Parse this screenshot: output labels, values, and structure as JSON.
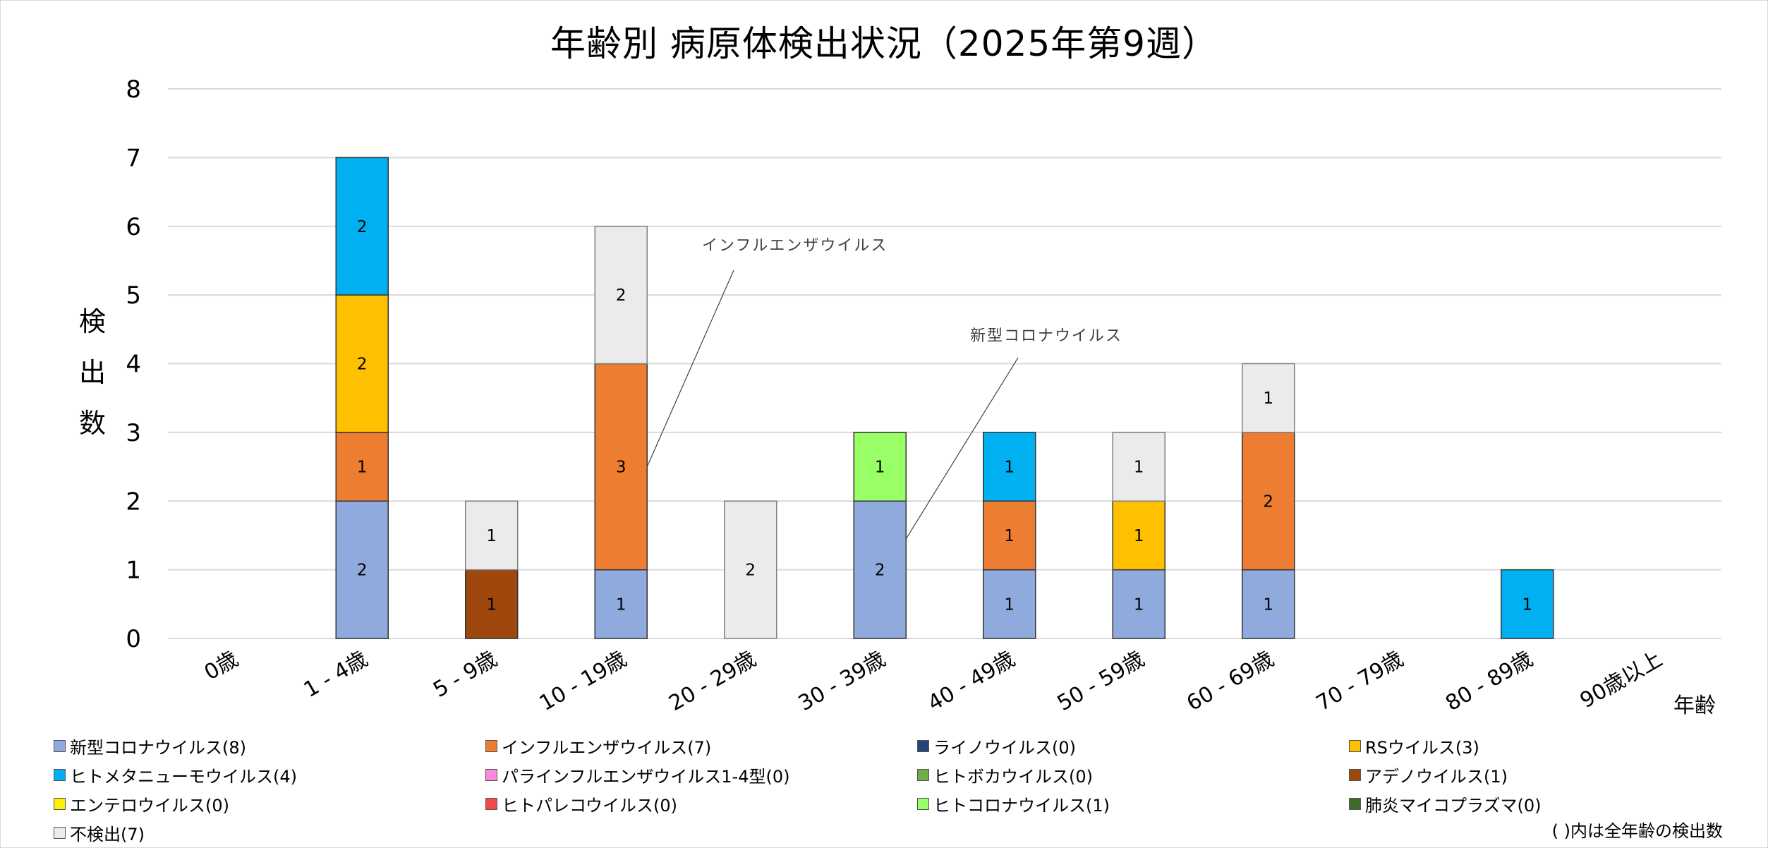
{
  "chart_data": {
    "type": "bar",
    "stacked": true,
    "title": "年齢別 病原体検出状況（2025年第9週）",
    "xlabel": "年齢",
    "ylabel": "検出数",
    "ylim": [
      0,
      8
    ],
    "yticks": [
      "0",
      "1",
      "2",
      "3",
      "4",
      "5",
      "6",
      "7",
      "8"
    ],
    "grid": true,
    "legend_position": "bottom",
    "categories": [
      "0歳",
      "1 - 4歳",
      "5 - 9歳",
      "10 - 19歳",
      "20 - 29歳",
      "30 - 39歳",
      "40 - 49歳",
      "50 - 59歳",
      "60 - 69歳",
      "70 - 79歳",
      "80 - 89歳",
      "90歳以上"
    ],
    "series": [
      {
        "name": "新型コロナウイルス",
        "legend": "新型コロナウイルス(8)",
        "color": "#8faadc",
        "values": [
          0,
          2,
          0,
          1,
          0,
          2,
          1,
          1,
          1,
          0,
          0,
          0
        ]
      },
      {
        "name": "インフルエンザウイルス",
        "legend": "インフルエンザウイルス(7)",
        "color": "#ed7d31",
        "values": [
          0,
          1,
          0,
          3,
          0,
          0,
          1,
          0,
          2,
          0,
          0,
          0
        ]
      },
      {
        "name": "ライノウイルス",
        "legend": "ライノウイルス(0)",
        "color": "#264478",
        "values": [
          0,
          0,
          0,
          0,
          0,
          0,
          0,
          0,
          0,
          0,
          0,
          0
        ]
      },
      {
        "name": "RSウイルス",
        "legend": "RSウイルス(3)",
        "color": "#ffc000",
        "values": [
          0,
          2,
          0,
          0,
          0,
          0,
          0,
          1,
          0,
          0,
          0,
          0
        ]
      },
      {
        "name": "ヒトメタニューモウイルス",
        "legend": "ヒトメタニューモウイルス(4)",
        "color": "#00b0f0",
        "values": [
          0,
          2,
          0,
          0,
          0,
          0,
          1,
          0,
          0,
          0,
          1,
          0
        ]
      },
      {
        "name": "パラインフルエンザウイルス1-4型",
        "legend": "パラインフルエンザウイルス1-4型(0)",
        "color": "#ff88dd",
        "values": [
          0,
          0,
          0,
          0,
          0,
          0,
          0,
          0,
          0,
          0,
          0,
          0
        ]
      },
      {
        "name": "ヒトボカウイルス",
        "legend": "ヒトボカウイルス(0)",
        "color": "#70ad47",
        "values": [
          0,
          0,
          0,
          0,
          0,
          0,
          0,
          0,
          0,
          0,
          0,
          0
        ]
      },
      {
        "name": "アデノウイルス",
        "legend": "アデノウイルス(1)",
        "color": "#9e480e",
        "values": [
          0,
          0,
          1,
          0,
          0,
          0,
          0,
          0,
          0,
          0,
          0,
          0
        ]
      },
      {
        "name": "エンテロウイルス",
        "legend": "エンテロウイルス(0)",
        "color": "#ffef00",
        "values": [
          0,
          0,
          0,
          0,
          0,
          0,
          0,
          0,
          0,
          0,
          0,
          0
        ]
      },
      {
        "name": "ヒトパレコウイルス",
        "legend": "ヒトパレコウイルス(0)",
        "color": "#f24b4b",
        "values": [
          0,
          0,
          0,
          0,
          0,
          0,
          0,
          0,
          0,
          0,
          0,
          0
        ]
      },
      {
        "name": "ヒトコロナウイルス",
        "legend": "ヒトコロナウイルス(1)",
        "color": "#99ff66",
        "values": [
          0,
          0,
          0,
          0,
          0,
          1,
          0,
          0,
          0,
          0,
          0,
          0
        ]
      },
      {
        "name": "肺炎マイコプラズマ",
        "legend": "肺炎マイコプラズマ(0)",
        "color": "#3f6b2a",
        "values": [
          0,
          0,
          0,
          0,
          0,
          0,
          0,
          0,
          0,
          0,
          0,
          0
        ]
      },
      {
        "name": "不検出",
        "legend": "不検出(7)",
        "color": "#ebebeb",
        "values": [
          0,
          0,
          1,
          2,
          2,
          0,
          0,
          1,
          1,
          0,
          0,
          0
        ]
      }
    ],
    "annotations": [
      {
        "text": "インフルエンザウイルス",
        "category": "10 - 19歳",
        "series": "インフルエンザウイルス"
      },
      {
        "text": "新型コロナウイルス",
        "category": "30 - 39歳",
        "series": "新型コロナウイルス"
      }
    ],
    "note": "( )内は全年齢の検出数"
  }
}
